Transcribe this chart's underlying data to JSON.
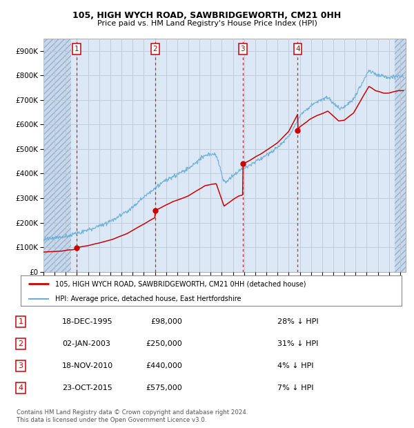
{
  "title1": "105, HIGH WYCH ROAD, SAWBRIDGEWORTH, CM21 0HH",
  "title2": "Price paid vs. HM Land Registry's House Price Index (HPI)",
  "ylabel_ticks": [
    "£0",
    "£100K",
    "£200K",
    "£300K",
    "£400K",
    "£500K",
    "£600K",
    "£700K",
    "£800K",
    "£900K"
  ],
  "ylim": [
    0,
    950000
  ],
  "xlim_start": 1993.0,
  "xlim_end": 2025.5,
  "hpi_color": "#6aaed6",
  "price_color": "#cc0000",
  "chart_bg": "#dce8f5",
  "hatch_bg": "#c8d8ec",
  "sale_points": [
    {
      "year": 1995.97,
      "price": 98000,
      "label": "1"
    },
    {
      "year": 2003.01,
      "price": 250000,
      "label": "2"
    },
    {
      "year": 2010.88,
      "price": 440000,
      "label": "3"
    },
    {
      "year": 2015.81,
      "price": 575000,
      "label": "4"
    }
  ],
  "hatch_left_end": 1995.5,
  "hatch_right_start": 2024.5,
  "table_entries": [
    {
      "num": "1",
      "date": "18-DEC-1995",
      "price": "£98,000",
      "hpi": "28% ↓ HPI"
    },
    {
      "num": "2",
      "date": "02-JAN-2003",
      "price": "£250,000",
      "hpi": "31% ↓ HPI"
    },
    {
      "num": "3",
      "date": "18-NOV-2010",
      "price": "£440,000",
      "hpi": "4% ↓ HPI"
    },
    {
      "num": "4",
      "date": "23-OCT-2015",
      "price": "£575,000",
      "hpi": "7% ↓ HPI"
    }
  ],
  "legend_line1": "105, HIGH WYCH ROAD, SAWBRIDGEWORTH, CM21 0HH (detached house)",
  "legend_line2": "HPI: Average price, detached house, East Hertfordshire",
  "footer": "Contains HM Land Registry data © Crown copyright and database right 2024.\nThis data is licensed under the Open Government Licence v3.0."
}
